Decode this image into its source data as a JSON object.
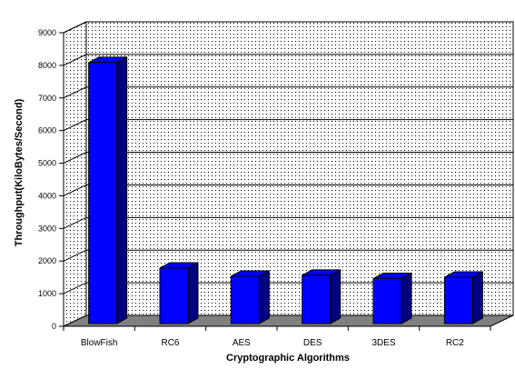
{
  "chart_data": {
    "type": "bar",
    "style": "3d",
    "title": "",
    "xlabel": "Cryptographic Algorithms",
    "ylabel": "Throughput(KiloBytes/Second)",
    "categories": [
      "BlowFish",
      "RC6",
      "AES",
      "DES",
      "3DES",
      "RC2"
    ],
    "values": [
      8000,
      1700,
      1450,
      1480,
      1380,
      1420
    ],
    "ylim": [
      0,
      9000
    ],
    "yticks": [
      0,
      1000,
      2000,
      3000,
      4000,
      5000,
      6000,
      7000,
      8000,
      9000
    ],
    "grid": true,
    "legend": "none",
    "colors": {
      "bar_front": "#0000ff",
      "bar_side": "#000080",
      "bar_top": "#0000ff",
      "floor": "#808080",
      "wall_dots": "#000000",
      "gridline": "#000000"
    }
  }
}
